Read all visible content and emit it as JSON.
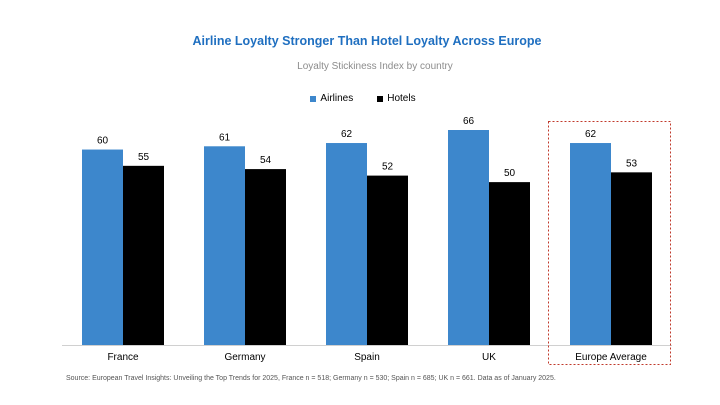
{
  "chart_data": {
    "type": "bar",
    "title": "Airline Loyalty Stronger Than Hotel Loyalty Across Europe",
    "subtitle": "Loyalty Stickiness Index by country",
    "categories": [
      "France",
      "Germany",
      "Spain",
      "UK",
      "Europe Average"
    ],
    "series": [
      {
        "name": "Airlines",
        "color": "#3d87cc",
        "values": [
          60,
          61,
          62,
          66,
          62
        ]
      },
      {
        "name": "Hotels",
        "color": "#000000",
        "values": [
          55,
          54,
          52,
          50,
          53
        ]
      }
    ],
    "ylim": [
      0,
      66
    ],
    "grid": false,
    "legend_position": "top-center",
    "data_labels": true,
    "highlight": {
      "category": "Europe Average",
      "style": "dotted-box",
      "color": "#c0392b"
    }
  },
  "source_note": "Source: European Travel Insights: Unveiling the Top Trends for 2025, France n = 518; Germany n = 530; Spain n = 685; UK n = 661. Data as of January 2025."
}
